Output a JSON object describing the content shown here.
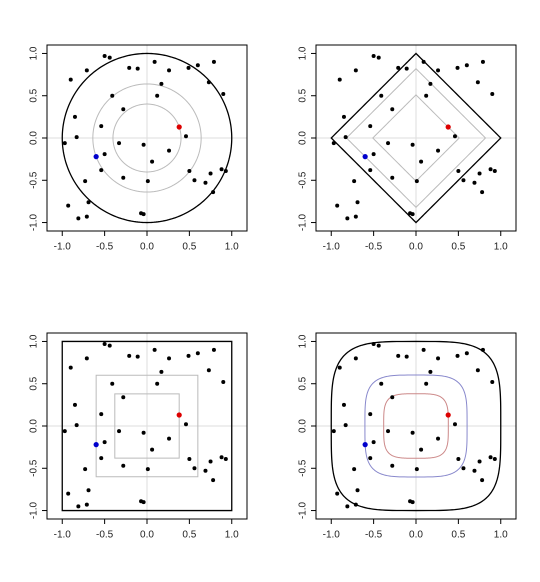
{
  "chart_data": [
    {
      "type": "scatter",
      "x_points": null,
      "series": [
        {
          "color": "#000000",
          "x": [
            -0.9,
            -0.71,
            -0.5,
            -0.44,
            -0.21,
            -0.11,
            0.09,
            0.26,
            0.49,
            0.6,
            0.73,
            0.79,
            0.9,
            -0.85,
            -0.41,
            0.12,
            0.17,
            -0.28,
            -0.54,
            0.46,
            -0.97,
            -0.83,
            -0.33,
            -0.04,
            0.26,
            -0.5,
            -0.54,
            0.06,
            0.01,
            -0.28,
            0.5,
            0.56,
            0.69,
            0.78,
            0.88,
            0.93,
            0.75,
            -0.73,
            -0.93,
            -0.69,
            -0.81,
            -0.07,
            -0.04,
            -0.71
          ],
          "values": [
            0.69,
            0.8,
            0.97,
            0.95,
            0.83,
            0.82,
            0.9,
            0.8,
            0.83,
            0.86,
            0.66,
            0.9,
            0.52,
            0.25,
            0.5,
            0.5,
            0.64,
            0.34,
            0.14,
            0.02,
            -0.06,
            0.01,
            -0.06,
            -0.08,
            -0.15,
            -0.19,
            -0.38,
            -0.28,
            -0.51,
            -0.47,
            -0.39,
            -0.5,
            -0.53,
            -0.64,
            -0.37,
            -0.39,
            -0.42,
            -0.51,
            -0.8,
            -0.76,
            -0.95,
            -0.89,
            -0.9,
            -0.93
          ]
        },
        {
          "color": "#dd0000",
          "x": [
            0.38
          ],
          "values": [
            0.13
          ]
        },
        {
          "color": "#0000cc",
          "x": [
            -0.6
          ],
          "values": [
            -0.22
          ]
        }
      ],
      "xlim": [
        -1.18,
        1.18
      ],
      "ylim": [
        -1.1,
        1.1
      ],
      "xticks": [
        {
          "value": -1,
          "label": "-1.0"
        },
        {
          "value": -0.5,
          "label": "-0.5"
        },
        {
          "value": 0,
          "label": "0.0"
        },
        {
          "value": 0.5,
          "label": "0.5"
        },
        {
          "value": 1,
          "label": "1.0"
        }
      ],
      "yticks": [
        {
          "value": -1,
          "label": "-1.0"
        },
        {
          "value": -0.5,
          "label": "-0.5"
        },
        {
          "value": 0,
          "label": "0.0"
        },
        {
          "value": 0.5,
          "label": "0.5"
        },
        {
          "value": 1,
          "label": "1.0"
        }
      ]
    }
  ]
}
